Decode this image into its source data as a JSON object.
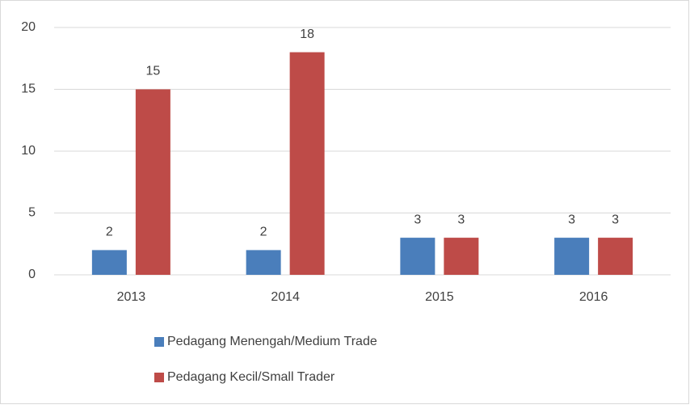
{
  "chart_data": {
    "type": "bar",
    "categories": [
      "2013",
      "2014",
      "2015",
      "2016"
    ],
    "series": [
      {
        "name": "Pedagang Menengah/Medium Trade",
        "color": "#4a7ebb",
        "values": [
          2,
          2,
          3,
          3
        ]
      },
      {
        "name": "Pedagang Kecil/Small Trader",
        "color": "#be4b48",
        "values": [
          15,
          18,
          3,
          3
        ]
      }
    ],
    "ylim": [
      0,
      20
    ],
    "yticks": [
      0,
      5,
      10,
      15,
      20
    ],
    "grid": true,
    "legend": "bottom"
  }
}
